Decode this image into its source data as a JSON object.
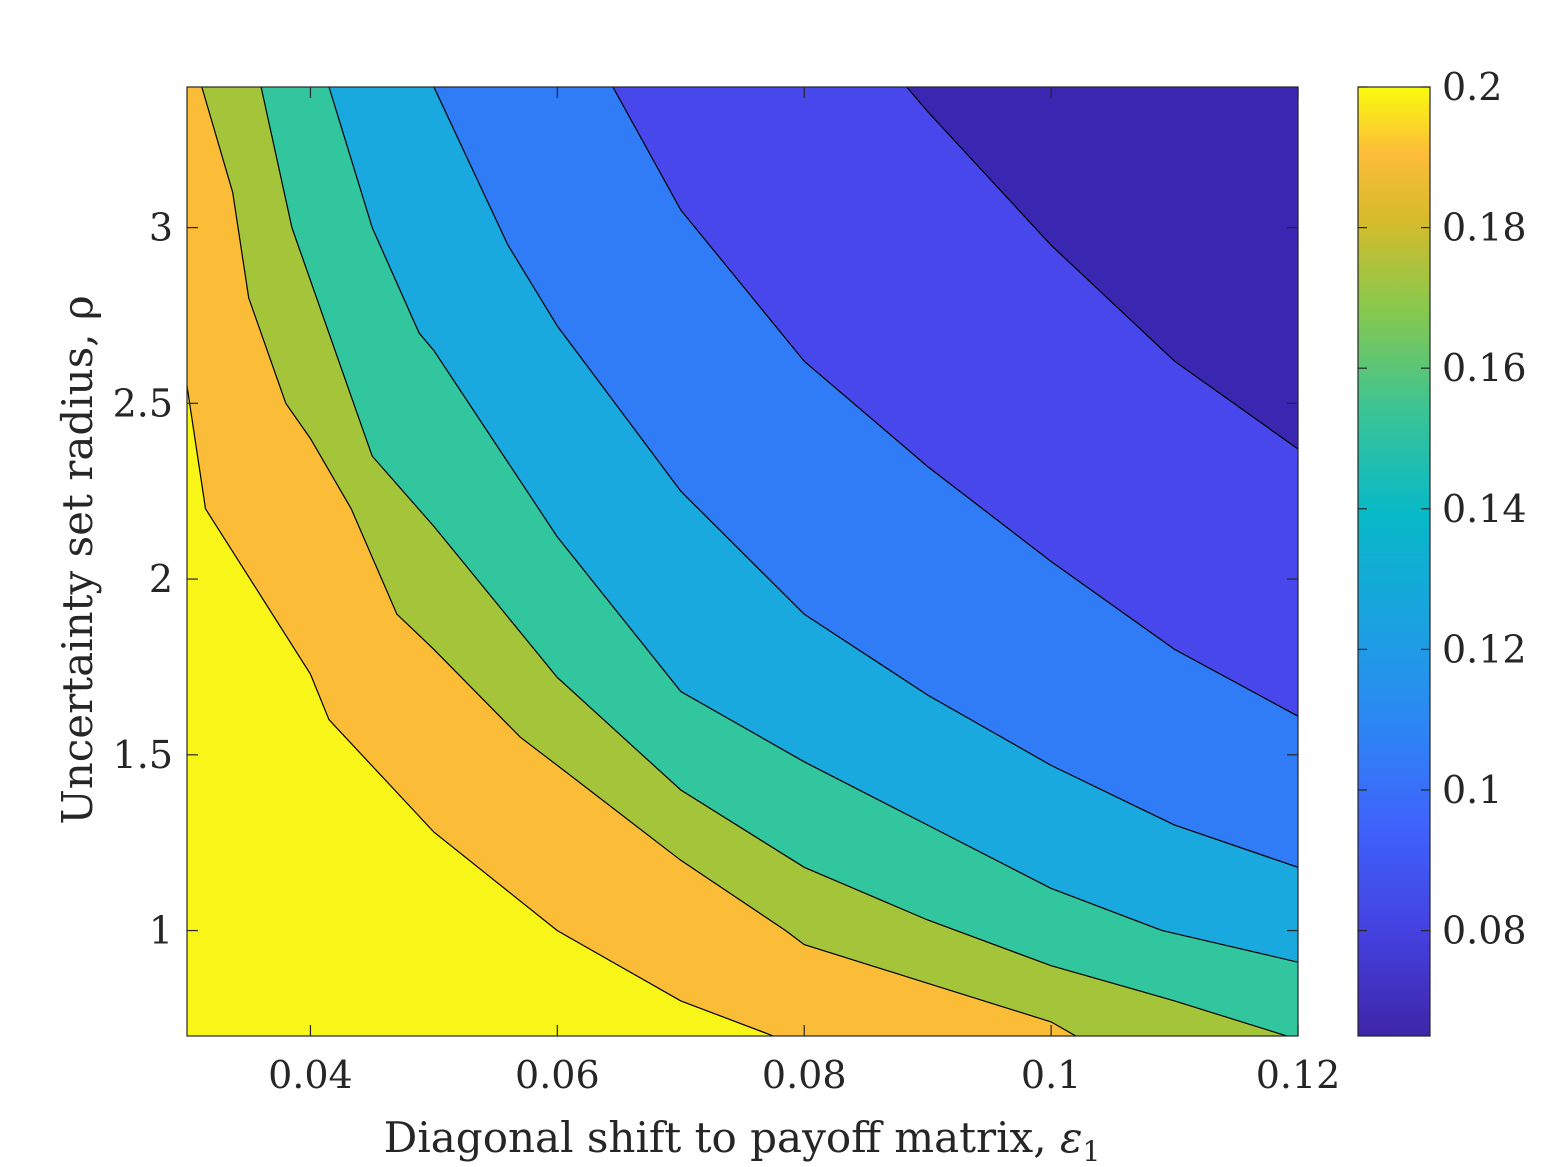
{
  "chart_data": {
    "type": "contour",
    "xlabel_prefix": "Diagonal shift to payoff matrix, ",
    "xlabel_symbol": "ε",
    "xlabel_subscript": "1",
    "ylabel": "Uncertainty set radius, ρ",
    "xlim": [
      0.03,
      0.12
    ],
    "ylim": [
      0.7,
      3.4
    ],
    "xticks": [
      0.04,
      0.06,
      0.08,
      0.1,
      0.12
    ],
    "xtick_labels": [
      "0.04",
      "0.06",
      "0.08",
      "0.1",
      "0.12"
    ],
    "yticks": [
      1,
      1.5,
      2,
      2.5,
      3
    ],
    "ytick_labels": [
      "1",
      "1.5",
      "2",
      "2.5",
      "3"
    ],
    "colorbar": {
      "lim": [
        0.065,
        0.2
      ],
      "ticks": [
        0.08,
        0.1,
        0.12,
        0.14,
        0.16,
        0.18,
        0.2
      ],
      "tick_labels": [
        "0.08",
        "0.1",
        "0.12",
        "0.14",
        "0.16",
        "0.18",
        "0.2"
      ],
      "colormap": "parula"
    },
    "levels": [
      0.075,
      0.09,
      0.105,
      0.12,
      0.135,
      0.15,
      0.165,
      0.18,
      0.195
    ],
    "region_colors": [
      "#3a27b1",
      "#4747eb",
      "#2f7cf6",
      "#1aa9df",
      "#32c69f",
      "#a4c53a",
      "#fbbd38",
      "#f8f518"
    ],
    "contours": [
      [
        [
          0.03,
          2.55
        ],
        [
          0.0315,
          2.2
        ],
        [
          0.04,
          1.73
        ],
        [
          0.0415,
          1.6
        ],
        [
          0.05,
          1.28
        ],
        [
          0.06,
          1.0
        ],
        [
          0.07,
          0.8
        ],
        [
          0.0775,
          0.7
        ]
      ],
      [
        [
          0.0312,
          3.4
        ],
        [
          0.0337,
          3.1
        ],
        [
          0.035,
          2.8
        ],
        [
          0.038,
          2.5
        ],
        [
          0.04,
          2.4
        ],
        [
          0.0433,
          2.2
        ],
        [
          0.047,
          1.9
        ],
        [
          0.05,
          1.8
        ],
        [
          0.057,
          1.55
        ],
        [
          0.06,
          1.47
        ],
        [
          0.07,
          1.2
        ],
        [
          0.0785,
          1.0
        ],
        [
          0.08,
          0.96
        ],
        [
          0.09,
          0.85
        ],
        [
          0.1,
          0.74
        ],
        [
          0.102,
          0.7
        ]
      ],
      [
        [
          0.036,
          3.4
        ],
        [
          0.0385,
          3.0
        ],
        [
          0.04,
          2.85
        ],
        [
          0.0435,
          2.5
        ],
        [
          0.045,
          2.35
        ],
        [
          0.05,
          2.15
        ],
        [
          0.06,
          1.72
        ],
        [
          0.07,
          1.4
        ],
        [
          0.08,
          1.18
        ],
        [
          0.09,
          1.03
        ],
        [
          0.1,
          0.9
        ],
        [
          0.11,
          0.8
        ],
        [
          0.12,
          0.69
        ]
      ],
      [
        [
          0.0415,
          3.4
        ],
        [
          0.045,
          3.0
        ],
        [
          0.0488,
          2.7
        ],
        [
          0.05,
          2.65
        ],
        [
          0.06,
          2.12
        ],
        [
          0.07,
          1.68
        ],
        [
          0.08,
          1.48
        ],
        [
          0.09,
          1.3
        ],
        [
          0.1,
          1.12
        ],
        [
          0.109,
          1.0
        ],
        [
          0.12,
          0.91
        ]
      ],
      [
        [
          0.05,
          3.4
        ],
        [
          0.056,
          2.95
        ],
        [
          0.06,
          2.72
        ],
        [
          0.07,
          2.25
        ],
        [
          0.08,
          1.9
        ],
        [
          0.09,
          1.67
        ],
        [
          0.1,
          1.47
        ],
        [
          0.11,
          1.3
        ],
        [
          0.12,
          1.18
        ]
      ],
      [
        [
          0.0645,
          3.4
        ],
        [
          0.07,
          3.05
        ],
        [
          0.08,
          2.62
        ],
        [
          0.09,
          2.32
        ],
        [
          0.1,
          2.05
        ],
        [
          0.11,
          1.8
        ],
        [
          0.12,
          1.61
        ]
      ],
      [
        [
          0.0883,
          3.4
        ],
        [
          0.09,
          3.33
        ],
        [
          0.1,
          2.95
        ],
        [
          0.11,
          2.62
        ],
        [
          0.12,
          2.37
        ]
      ]
    ],
    "grid": false
  }
}
